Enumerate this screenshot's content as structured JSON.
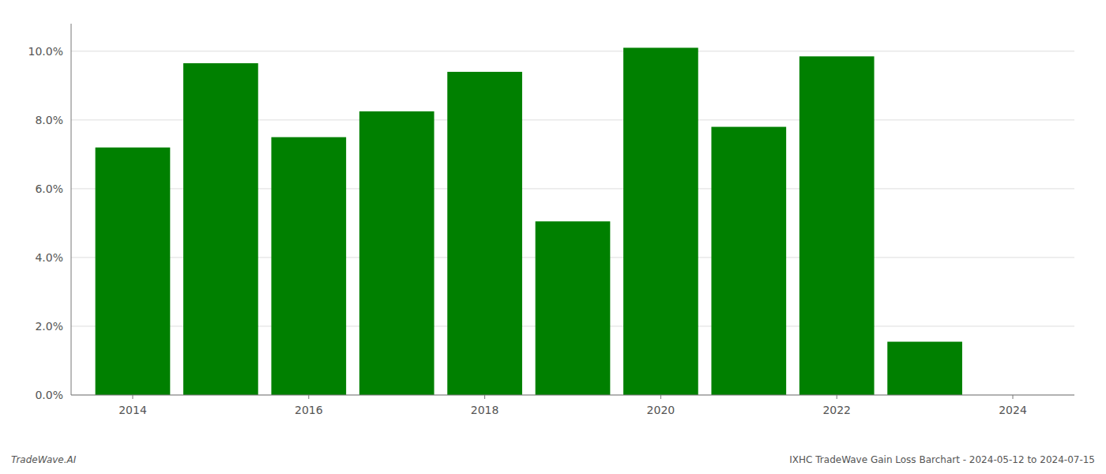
{
  "chart_data": {
    "type": "bar",
    "title": "IXHC TradeWave Gain Loss Barchart - 2024-05-12 to 2024-07-15",
    "annotations": [
      "TradeWave.AI"
    ],
    "x": [
      2014,
      2015,
      2016,
      2017,
      2018,
      2019,
      2020,
      2021,
      2022,
      2023
    ],
    "values": [
      0.072,
      0.0965,
      0.075,
      0.0825,
      0.094,
      0.0505,
      0.101,
      0.078,
      0.0985,
      0.0155
    ],
    "color": "#008000",
    "xlim": [
      2013.3,
      2024.7
    ],
    "xticks": [
      2014,
      2016,
      2018,
      2020,
      2022,
      2024
    ],
    "ylim": [
      0,
      0.108
    ],
    "yticks": [
      {
        "value": 0.0,
        "label": "0.0%"
      },
      {
        "value": 0.02,
        "label": "2.0%"
      },
      {
        "value": 0.04,
        "label": "4.0%"
      },
      {
        "value": 0.06,
        "label": "6.0%"
      },
      {
        "value": 0.08,
        "label": "8.0%"
      },
      {
        "value": 0.1,
        "label": "10.0%"
      }
    ],
    "grid": true
  }
}
